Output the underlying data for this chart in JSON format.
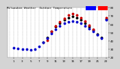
{
  "background_color": "#d4d4d4",
  "plot_bg_color": "#ffffff",
  "grid_color": "#888888",
  "title_color": "#000000",
  "hours": [
    0,
    1,
    2,
    3,
    4,
    5,
    6,
    7,
    8,
    9,
    10,
    11,
    12,
    13,
    14,
    15,
    16,
    17,
    18,
    19,
    20,
    21,
    22,
    23
  ],
  "outdoor_temp": [
    null,
    32,
    31,
    30,
    30,
    29,
    30,
    33,
    38,
    43,
    49,
    54,
    58,
    61,
    63,
    64,
    63,
    61,
    58,
    55,
    51,
    47,
    43,
    65
  ],
  "thsw": [
    null,
    null,
    null,
    null,
    null,
    null,
    null,
    null,
    null,
    41,
    51,
    58,
    63,
    67,
    71,
    73,
    71,
    68,
    64,
    59,
    54,
    null,
    null,
    68
  ],
  "hi_temp": [
    null,
    null,
    null,
    null,
    null,
    null,
    null,
    null,
    38,
    44,
    51,
    57,
    61,
    65,
    68,
    69,
    68,
    65,
    61,
    57,
    53,
    48,
    44,
    66
  ],
  "ylim": [
    20,
    80
  ],
  "ytick_vals": [
    20,
    30,
    40,
    50,
    60,
    70,
    80
  ],
  "xtick_hours": [
    1,
    3,
    5,
    7,
    9,
    11,
    13,
    15,
    17,
    19,
    21,
    23
  ],
  "marker_size": 1.8,
  "outdoor_color": "#0000cc",
  "thsw_color": "#cc0000",
  "hi_color": "#000000",
  "legend_blue": "#0000ff",
  "legend_red": "#ff0000",
  "spine_color": "#888888",
  "tick_color": "#000000",
  "tick_fontsize": 3.0,
  "title_fontsize": 3.0
}
